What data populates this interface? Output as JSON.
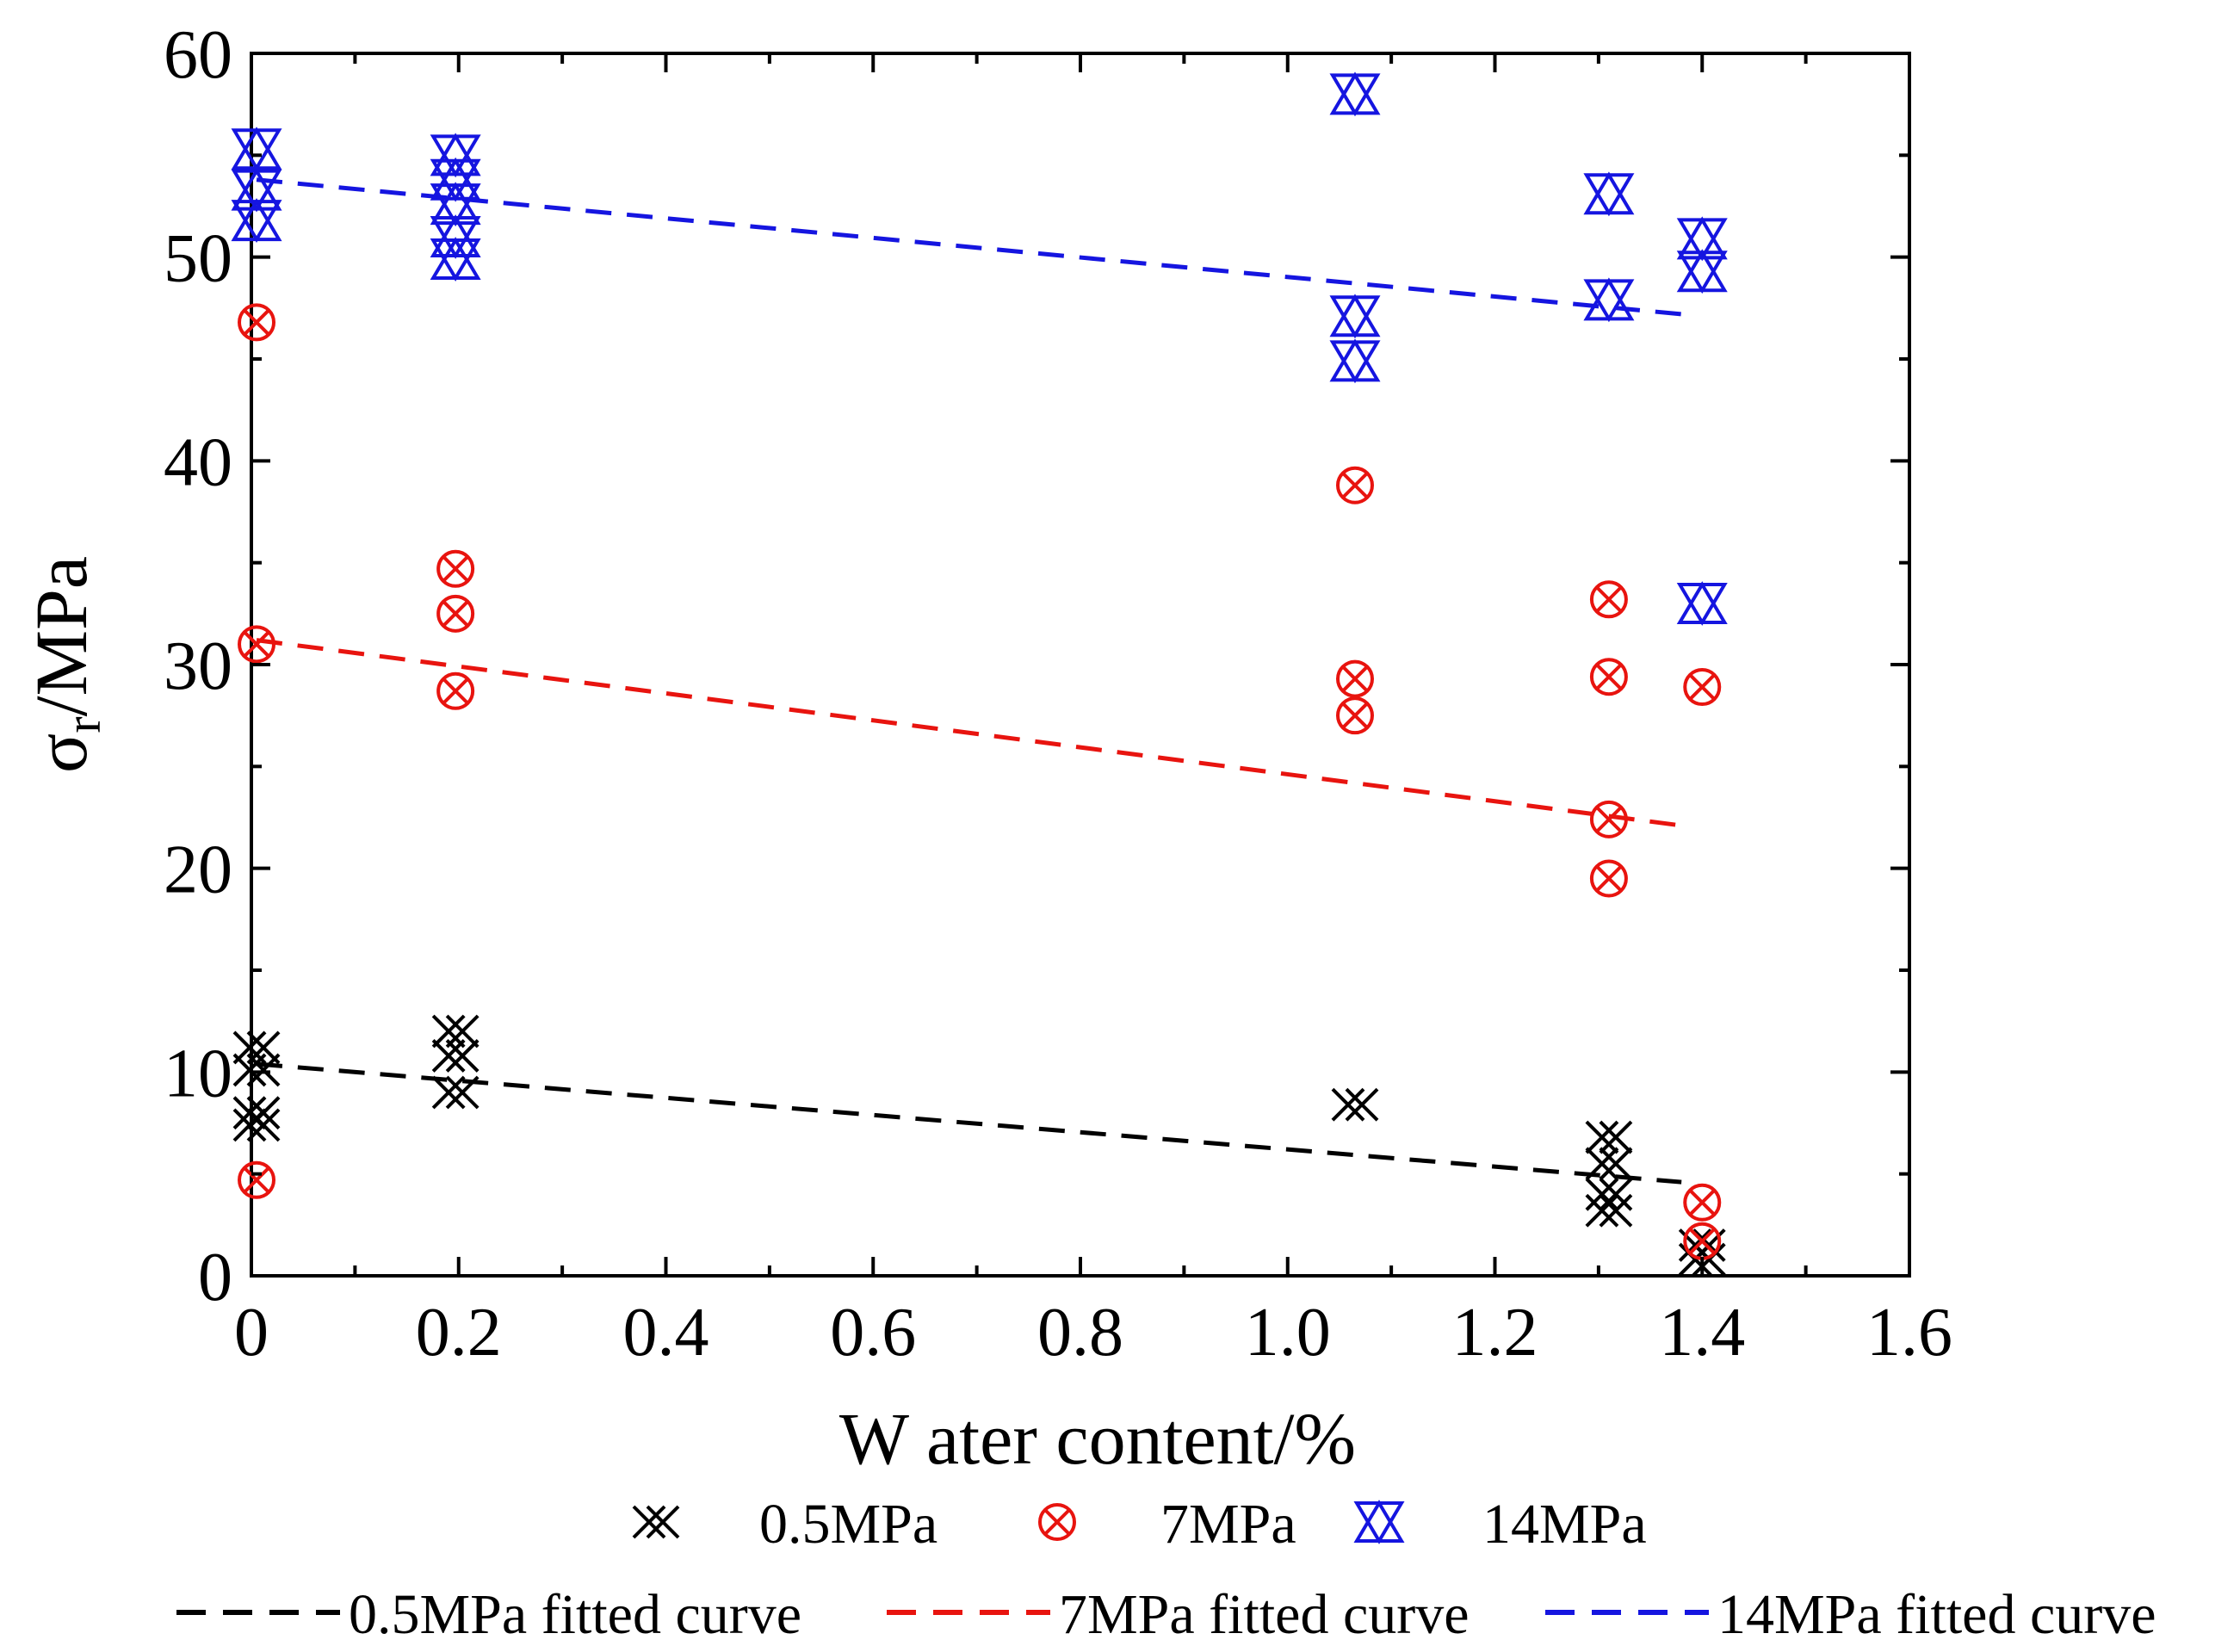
{
  "chart_data": {
    "type": "scatter",
    "xlabel": "W ater content/%",
    "ylabel_main": "σ",
    "ylabel_sub": "r",
    "ylabel_rest": "/MPa",
    "xlim": [
      0,
      1.6
    ],
    "ylim": [
      0,
      60
    ],
    "xticks": [
      "0",
      "0.2",
      "0.4",
      "0.6",
      "0.8",
      "1.0",
      "1.2",
      "1.4",
      "1.6"
    ],
    "xtick_values": [
      0,
      0.2,
      0.4,
      0.6,
      0.8,
      1.0,
      1.2,
      1.4,
      1.6
    ],
    "yticks": [
      "0",
      "10",
      "20",
      "30",
      "40",
      "50",
      "60"
    ],
    "ytick_values": [
      0,
      10,
      20,
      30,
      40,
      50,
      60
    ],
    "grid": false,
    "legend_position": "bottom",
    "series": [
      {
        "name": "0.5MPa",
        "marker": "double-x",
        "color": "#000000",
        "points": [
          {
            "x": 0.005,
            "y": 11.2
          },
          {
            "x": 0.005,
            "y": 10.1
          },
          {
            "x": 0.005,
            "y": 8.0
          },
          {
            "x": 0.005,
            "y": 7.4
          },
          {
            "x": 0.197,
            "y": 12.0
          },
          {
            "x": 0.197,
            "y": 10.8
          },
          {
            "x": 0.197,
            "y": 9.0
          },
          {
            "x": 1.065,
            "y": 8.4
          },
          {
            "x": 1.31,
            "y": 6.8
          },
          {
            "x": 1.31,
            "y": 5.5
          },
          {
            "x": 1.31,
            "y": 4.0
          },
          {
            "x": 1.31,
            "y": 3.2
          },
          {
            "x": 1.4,
            "y": 1.5
          },
          {
            "x": 1.4,
            "y": 0.8
          }
        ]
      },
      {
        "name": "7MPa",
        "marker": "circle-x",
        "color": "#e8140f",
        "points": [
          {
            "x": 0.005,
            "y": 46.8
          },
          {
            "x": 0.005,
            "y": 31.0
          },
          {
            "x": 0.005,
            "y": 4.7
          },
          {
            "x": 0.197,
            "y": 34.7
          },
          {
            "x": 0.197,
            "y": 32.5
          },
          {
            "x": 0.197,
            "y": 28.7
          },
          {
            "x": 1.065,
            "y": 38.8
          },
          {
            "x": 1.065,
            "y": 29.3
          },
          {
            "x": 1.065,
            "y": 27.5
          },
          {
            "x": 1.31,
            "y": 33.2
          },
          {
            "x": 1.31,
            "y": 29.4
          },
          {
            "x": 1.31,
            "y": 22.4
          },
          {
            "x": 1.31,
            "y": 19.5
          },
          {
            "x": 1.4,
            "y": 28.9
          },
          {
            "x": 1.4,
            "y": 3.6
          },
          {
            "x": 1.4,
            "y": 1.7
          }
        ]
      },
      {
        "name": "14MPa",
        "marker": "double-triangle",
        "color": "#1515e0",
        "points": [
          {
            "x": 0.005,
            "y": 55.3
          },
          {
            "x": 0.005,
            "y": 53.3
          },
          {
            "x": 0.005,
            "y": 51.8
          },
          {
            "x": 0.197,
            "y": 55.0
          },
          {
            "x": 0.197,
            "y": 53.8
          },
          {
            "x": 0.197,
            "y": 52.6
          },
          {
            "x": 0.197,
            "y": 51.0
          },
          {
            "x": 0.197,
            "y": 49.9
          },
          {
            "x": 1.065,
            "y": 58.0
          },
          {
            "x": 1.065,
            "y": 47.1
          },
          {
            "x": 1.065,
            "y": 44.9
          },
          {
            "x": 1.31,
            "y": 53.1
          },
          {
            "x": 1.31,
            "y": 47.9
          },
          {
            "x": 1.4,
            "y": 50.9
          },
          {
            "x": 1.4,
            "y": 49.3
          },
          {
            "x": 1.4,
            "y": 33.0
          }
        ]
      }
    ],
    "fitted_curves": [
      {
        "name": "0.5MPa fitted curve",
        "color": "#000000",
        "x": [
          0.005,
          1.38
        ],
        "y": [
          10.4,
          4.6
        ]
      },
      {
        "name": "7MPa fitted curve",
        "color": "#e8140f",
        "x": [
          0.005,
          1.38
        ],
        "y": [
          31.2,
          22.1
        ]
      },
      {
        "name": "14MPa fitted curve",
        "color": "#1515e0",
        "x": [
          0.005,
          1.38
        ],
        "y": [
          53.8,
          47.2
        ]
      }
    ]
  }
}
